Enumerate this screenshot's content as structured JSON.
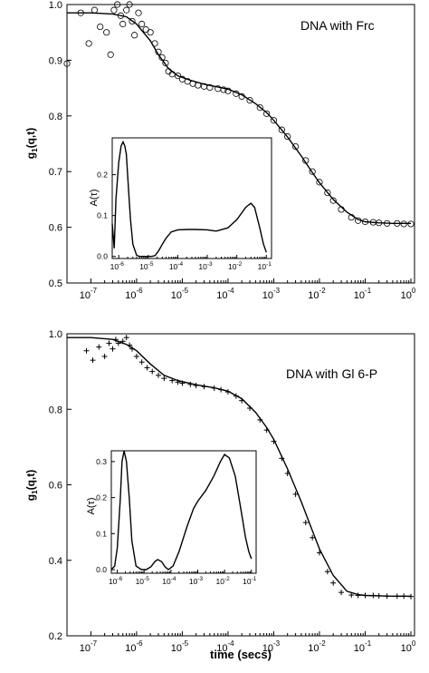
{
  "chart_data": [
    {
      "type": "scatter",
      "title": "DNA with Frc",
      "xlabel": "",
      "ylabel_base": "g",
      "ylabel_sub": "1",
      "ylabel_rest": "(q,t)",
      "xscale": "log",
      "xlim": [
        3e-08,
        1.2
      ],
      "ylim": [
        0.5,
        1.0
      ],
      "ytick_labels": [
        "0.5",
        "0.6",
        "0.7",
        "0.8",
        "0.9",
        "1.0"
      ],
      "xtick_exponents": [
        "-7",
        "-6",
        "-5",
        "-4",
        "-3",
        "-2",
        "-1",
        "0"
      ],
      "marker": "circle",
      "series": [
        {
          "role": "data",
          "x": [
            3e-08,
            6e-08,
            9e-08,
            1.2e-07,
            1.6e-07,
            2.2e-07,
            2.7e-07,
            3.2e-07,
            3.8e-07,
            4.5e-07,
            5e-07,
            6e-07,
            7e-07,
            8e-07,
            9e-07,
            1.1e-06,
            1.3e-06,
            1.6e-06,
            2e-06,
            2.5e-06,
            3e-06,
            3.6e-06,
            4.3e-06,
            5e-06,
            6e-06,
            8e-06,
            1e-05,
            1.3e-05,
            1.7e-05,
            2.2e-05,
            3e-05,
            4e-05,
            6e-05,
            8e-05,
            0.0001,
            0.00015,
            0.0002,
            0.0003,
            0.0005,
            0.0007,
            0.001,
            0.0015,
            0.002,
            0.003,
            0.005,
            0.007,
            0.01,
            0.015,
            0.02,
            0.03,
            0.05,
            0.07,
            0.1,
            0.15,
            0.2,
            0.3,
            0.5,
            0.7,
            1.0
          ],
          "y": [
            0.894,
            0.985,
            0.93,
            0.99,
            0.96,
            0.95,
            0.91,
            0.99,
            1.0,
            0.98,
            0.965,
            0.99,
            1.0,
            0.97,
            0.945,
            0.985,
            0.965,
            0.955,
            0.95,
            0.93,
            0.915,
            0.905,
            0.895,
            0.88,
            0.875,
            0.872,
            0.866,
            0.862,
            0.858,
            0.855,
            0.853,
            0.851,
            0.849,
            0.847,
            0.845,
            0.84,
            0.835,
            0.828,
            0.815,
            0.804,
            0.792,
            0.775,
            0.763,
            0.745,
            0.72,
            0.7,
            0.681,
            0.662,
            0.648,
            0.632,
            0.618,
            0.612,
            0.61,
            0.609,
            0.608,
            0.607,
            0.607,
            0.606,
            0.606
          ]
        },
        {
          "role": "fit",
          "x": [
            3e-08,
            1e-07,
            3e-07,
            6e-07,
            1e-06,
            2e-06,
            3e-06,
            5e-06,
            8e-06,
            1.5e-05,
            3e-05,
            6e-05,
            0.0001,
            0.0002,
            0.0004,
            0.0007,
            0.001,
            0.002,
            0.004,
            0.007,
            0.01,
            0.02,
            0.04,
            0.07,
            0.1,
            0.2,
            0.4,
            1.0
          ],
          "y": [
            0.985,
            0.985,
            0.983,
            0.978,
            0.965,
            0.935,
            0.91,
            0.885,
            0.872,
            0.864,
            0.857,
            0.852,
            0.848,
            0.838,
            0.822,
            0.806,
            0.792,
            0.762,
            0.728,
            0.698,
            0.68,
            0.65,
            0.627,
            0.614,
            0.61,
            0.608,
            0.607,
            0.607
          ]
        }
      ],
      "inset": {
        "type": "line",
        "ylabel": "A(τ)",
        "xscale": "log",
        "xlim": [
          6e-07,
          0.15
        ],
        "ylim": [
          -0.005,
          0.29
        ],
        "ytick_labels": [
          "0.0",
          "0.1",
          "0.2"
        ],
        "xtick_exponents": [
          "-6",
          "-5",
          "-4",
          "-3",
          "-2",
          "-1"
        ],
        "x": [
          6e-07,
          7e-07,
          8e-07,
          1e-06,
          1.2e-06,
          1.4e-06,
          1.6e-06,
          1.8e-06,
          2e-06,
          2.2e-06,
          2.5e-06,
          3e-06,
          4e-06,
          5e-06,
          7e-06,
          1e-05,
          1.3e-05,
          1.7e-05,
          2.3e-05,
          3e-05,
          4e-05,
          6e-05,
          0.0001,
          0.0002,
          0.0004,
          0.001,
          0.002,
          0.005,
          0.01,
          0.02,
          0.03,
          0.04,
          0.06,
          0.08,
          0.1
        ],
        "y": [
          0.08,
          0.02,
          0.14,
          0.23,
          0.27,
          0.28,
          0.27,
          0.25,
          0.2,
          0.15,
          0.09,
          0.03,
          0.003,
          0.0,
          0.0,
          0.0,
          0.0,
          0.002,
          0.015,
          0.03,
          0.045,
          0.06,
          0.065,
          0.066,
          0.066,
          0.065,
          0.062,
          0.07,
          0.09,
          0.12,
          0.13,
          0.12,
          0.07,
          0.03,
          0.01
        ]
      }
    },
    {
      "type": "scatter",
      "title": "DNA with Gl 6-P",
      "xlabel": "time (secs)",
      "ylabel_base": "g",
      "ylabel_sub": "1",
      "ylabel_rest": "(q,t)",
      "xscale": "log",
      "xlim": [
        3e-08,
        1.2
      ],
      "ylim": [
        0.2,
        1.0
      ],
      "ytick_labels": [
        "0.2",
        "0.4",
        "0.6",
        "0.8",
        "1.0"
      ],
      "xtick_exponents": [
        "-7",
        "-6",
        "-5",
        "-4",
        "-3",
        "-2",
        "-1",
        "0"
      ],
      "marker": "plus",
      "series": [
        {
          "role": "data",
          "x": [
            8e-08,
            1.1e-07,
            1.5e-07,
            2e-07,
            2.5e-07,
            3e-07,
            3.5e-07,
            4e-07,
            5e-07,
            6e-07,
            7e-07,
            8e-07,
            1e-06,
            1.3e-06,
            1.7e-06,
            2.2e-06,
            3e-06,
            4e-06,
            6e-06,
            8e-06,
            1e-05,
            1.5e-05,
            2e-05,
            3e-05,
            5e-05,
            7e-05,
            0.0001,
            0.00015,
            0.0002,
            0.0003,
            0.0005,
            0.0007,
            0.001,
            0.0015,
            0.002,
            0.003,
            0.005,
            0.007,
            0.01,
            0.015,
            0.02,
            0.03,
            0.05,
            0.07,
            0.1,
            0.15,
            0.2,
            0.3,
            0.5,
            0.7,
            1.0
          ],
          "y": [
            0.955,
            0.93,
            0.965,
            0.94,
            0.975,
            0.96,
            0.985,
            0.975,
            0.98,
            0.99,
            0.97,
            0.96,
            0.94,
            0.925,
            0.91,
            0.9,
            0.89,
            0.882,
            0.876,
            0.872,
            0.869,
            0.866,
            0.863,
            0.86,
            0.856,
            0.852,
            0.846,
            0.835,
            0.823,
            0.803,
            0.772,
            0.745,
            0.715,
            0.67,
            0.63,
            0.575,
            0.5,
            0.46,
            0.42,
            0.37,
            0.34,
            0.315,
            0.308,
            0.307,
            0.307,
            0.307,
            0.306,
            0.305,
            0.305,
            0.305,
            0.304
          ]
        },
        {
          "role": "fit",
          "x": [
            3e-08,
            1e-07,
            3e-07,
            6e-07,
            1e-06,
            2e-06,
            4e-06,
            8e-06,
            2e-05,
            5e-05,
            0.0001,
            0.0002,
            0.0004,
            0.0007,
            0.001,
            0.002,
            0.004,
            0.007,
            0.01,
            0.02,
            0.04,
            0.07,
            0.1,
            0.2,
            0.4,
            1.0
          ],
          "y": [
            0.99,
            0.99,
            0.985,
            0.972,
            0.955,
            0.92,
            0.89,
            0.876,
            0.865,
            0.857,
            0.848,
            0.828,
            0.792,
            0.752,
            0.72,
            0.642,
            0.555,
            0.478,
            0.43,
            0.36,
            0.318,
            0.309,
            0.307,
            0.306,
            0.305,
            0.305
          ]
        }
      ],
      "inset": {
        "type": "line",
        "ylabel": "A(τ)",
        "xscale": "log",
        "xlim": [
          6e-07,
          0.15
        ],
        "ylim": [
          -0.01,
          0.33
        ],
        "ytick_labels": [
          "0.0",
          "0.1",
          "0.2",
          "0.3"
        ],
        "xtick_exponents": [
          "-6",
          "-5",
          "-4",
          "-3",
          "-2",
          "-1"
        ],
        "x": [
          6e-07,
          8e-07,
          1e-06,
          1.3e-06,
          1.5e-06,
          1.8e-06,
          2.2e-06,
          2.8e-06,
          3.5e-06,
          5e-06,
          8e-06,
          1.2e-05,
          1.8e-05,
          2.5e-05,
          3.2e-05,
          4.5e-05,
          6e-05,
          8e-05,
          0.00012,
          0.0002,
          0.0004,
          0.0007,
          0.001,
          0.002,
          0.004,
          0.007,
          0.01,
          0.015,
          0.025,
          0.04,
          0.06,
          0.08,
          0.1
        ],
        "y": [
          0.0,
          0.01,
          0.06,
          0.2,
          0.3,
          0.33,
          0.3,
          0.2,
          0.08,
          0.01,
          0.0,
          0.0,
          0.008,
          0.022,
          0.028,
          0.022,
          0.008,
          0.0,
          0.01,
          0.05,
          0.12,
          0.17,
          0.19,
          0.22,
          0.26,
          0.3,
          0.32,
          0.31,
          0.26,
          0.17,
          0.09,
          0.05,
          0.03
        ]
      }
    }
  ]
}
